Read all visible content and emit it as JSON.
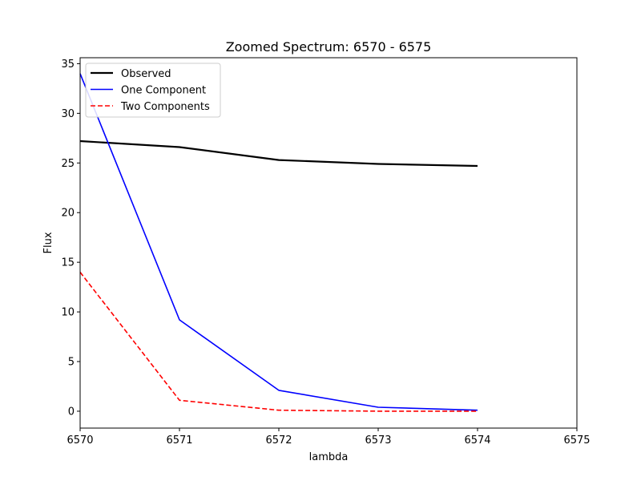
{
  "chart_data": {
    "type": "line",
    "title": "Zoomed Spectrum: 6570 - 6575",
    "xlabel": "lambda",
    "ylabel": "Flux",
    "xlim": [
      6570,
      6575
    ],
    "ylim": [
      -1.7,
      35.6
    ],
    "xticks": [
      6570,
      6571,
      6572,
      6573,
      6574,
      6575
    ],
    "yticks": [
      0,
      5,
      10,
      15,
      20,
      25,
      30,
      35
    ],
    "grid": false,
    "legend_position": "top-left",
    "x": [
      6570,
      6571,
      6572,
      6573,
      6574
    ],
    "series": [
      {
        "name": "Observed",
        "values": [
          27.2,
          26.6,
          25.3,
          24.9,
          24.7
        ],
        "color": "#000000",
        "style": "solid",
        "width": 2.2
      },
      {
        "name": "One Component",
        "values": [
          34.0,
          9.2,
          2.1,
          0.4,
          0.1
        ],
        "color": "#0000ff",
        "style": "solid",
        "width": 1.6
      },
      {
        "name": "Two Components",
        "values": [
          14.0,
          1.1,
          0.1,
          0.0,
          0.0
        ],
        "color": "#ff0000",
        "style": "dashed",
        "width": 1.6
      }
    ]
  }
}
